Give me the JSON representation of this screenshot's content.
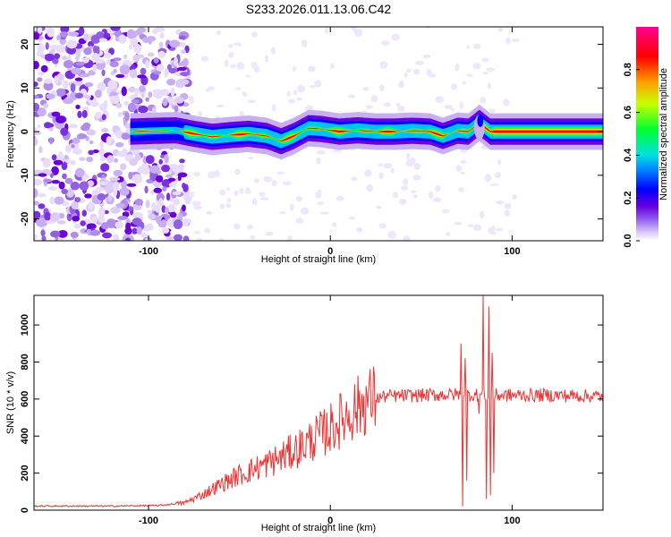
{
  "title": "S233.2026.011.13.06.C42",
  "chart_data": [
    {
      "type": "heatmap",
      "xlabel": "Height of straight line (km)",
      "ylabel": "Frequency (Hz)",
      "xlim": [
        -163,
        150
      ],
      "ylim": [
        -25,
        24
      ],
      "xticks": [
        -100,
        0,
        100
      ],
      "yticks": [
        -20,
        -10,
        0,
        10,
        20
      ],
      "colorbar": {
        "label": "Normalized spectral amplitude",
        "range": [
          0,
          1
        ],
        "ticks": [
          0.0,
          0.2,
          0.4,
          0.6,
          0.8
        ],
        "colors": [
          "#ffffff",
          "#b090f0",
          "#6a00e0",
          "#0000ff",
          "#00c8ff",
          "#00ff60",
          "#c8ff00",
          "#ffaa00",
          "#ff0000",
          "#ff0090"
        ]
      },
      "band_center_hz": [
        [
          -110,
          0.0
        ],
        [
          -95,
          0.2
        ],
        [
          -85,
          0.3
        ],
        [
          -75,
          -0.5
        ],
        [
          -65,
          -1.2
        ],
        [
          -55,
          -0.8
        ],
        [
          -45,
          -0.5
        ],
        [
          -35,
          -1.0
        ],
        [
          -27,
          -2.2
        ],
        [
          -20,
          -1.0
        ],
        [
          -12,
          0.8
        ],
        [
          -5,
          0.6
        ],
        [
          5,
          0.0
        ],
        [
          15,
          0.3
        ],
        [
          25,
          0.0
        ],
        [
          35,
          0.0
        ],
        [
          45,
          0.2
        ],
        [
          55,
          0.0
        ],
        [
          62,
          -1.0
        ],
        [
          70,
          0.2
        ],
        [
          76,
          0.0
        ],
        [
          82,
          2.0
        ],
        [
          88,
          0.0
        ],
        [
          100,
          0.0
        ],
        [
          150,
          0.0
        ]
      ]
    },
    {
      "type": "line",
      "xlabel": "Height of straight line (km)",
      "ylabel": "SNR (10 * v/v)",
      "xlim": [
        -163,
        150
      ],
      "ylim": [
        0,
        1160
      ],
      "xticks": [
        -100,
        0,
        100
      ],
      "yticks": [
        0,
        200,
        400,
        600,
        800,
        1000
      ],
      "color": "#ee3333",
      "trend": [
        [
          -163,
          22
        ],
        [
          -120,
          22
        ],
        [
          -95,
          25
        ],
        [
          -80,
          40
        ],
        [
          -70,
          85
        ],
        [
          -60,
          140
        ],
        [
          -50,
          190
        ],
        [
          -40,
          230
        ],
        [
          -30,
          270
        ],
        [
          -20,
          320
        ],
        [
          -10,
          380
        ],
        [
          0,
          440
        ],
        [
          10,
          520
        ],
        [
          20,
          590
        ],
        [
          30,
          615
        ],
        [
          50,
          620
        ],
        [
          70,
          625
        ],
        [
          90,
          620
        ],
        [
          120,
          620
        ],
        [
          150,
          615
        ]
      ],
      "spikes": [
        [
          72,
          900
        ],
        [
          73,
          20
        ],
        [
          74,
          820
        ],
        [
          75,
          160
        ],
        [
          82,
          520
        ],
        [
          84,
          1160
        ],
        [
          86,
          60
        ],
        [
          87,
          1100
        ],
        [
          88,
          80
        ],
        [
          89,
          850
        ],
        [
          90,
          200
        ]
      ]
    }
  ]
}
